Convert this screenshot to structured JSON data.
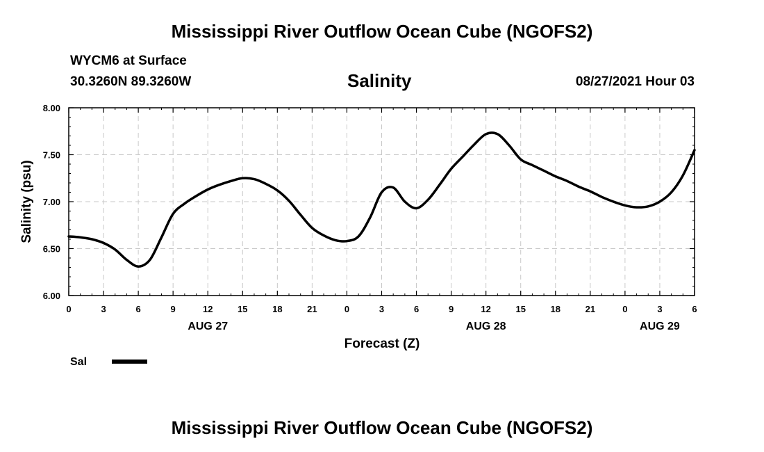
{
  "header": {
    "title": "Mississippi River Outflow Ocean Cube (NGOFS2)",
    "station": "WYCM6 at Surface",
    "coords": "30.3260N  89.3260W",
    "datetime": "08/27/2021 Hour 03"
  },
  "footer": {
    "title": "Mississippi River Outflow Ocean Cube (NGOFS2)"
  },
  "chart_data": {
    "type": "line",
    "title": "Salinity",
    "xlabel": "Forecast (Z)",
    "ylabel": "Salinity (psu)",
    "xlim": [
      0,
      54
    ],
    "ylim": [
      6.0,
      8.0
    ],
    "grid": true,
    "x_ticks": [
      0,
      3,
      6,
      9,
      12,
      15,
      18,
      21,
      24,
      27,
      30,
      33,
      36,
      39,
      42,
      45,
      48,
      51,
      54
    ],
    "x_tick_labels": [
      "0",
      "3",
      "6",
      "9",
      "12",
      "15",
      "18",
      "21",
      "0",
      "3",
      "6",
      "9",
      "12",
      "15",
      "18",
      "21",
      "0",
      "3",
      "6"
    ],
    "y_ticks": [
      6.0,
      6.5,
      7.0,
      7.5,
      8.0
    ],
    "y_tick_labels": [
      "6.00",
      "6.50",
      "7.00",
      "7.50",
      "8.00"
    ],
    "date_labels": [
      {
        "x": 12,
        "label": "AUG 27"
      },
      {
        "x": 36,
        "label": "AUG 28"
      },
      {
        "x": 51,
        "label": "AUG 29"
      }
    ],
    "legend": [
      {
        "name": "Sal",
        "color": "#000000"
      }
    ],
    "legend_position": "bottom-left",
    "series": [
      {
        "name": "Sal",
        "color": "#000000",
        "x": [
          0,
          1,
          2,
          3,
          4,
          5,
          6,
          7,
          8,
          9,
          10,
          11,
          12,
          13,
          14,
          15,
          16,
          17,
          18,
          19,
          20,
          21,
          22,
          23,
          24,
          25,
          26,
          27,
          28,
          29,
          30,
          31,
          32,
          33,
          34,
          35,
          36,
          37,
          38,
          39,
          40,
          41,
          42,
          43,
          44,
          45,
          46,
          47,
          48,
          49,
          50,
          51,
          52,
          53,
          54
        ],
        "values": [
          6.63,
          6.62,
          6.6,
          6.56,
          6.49,
          6.38,
          6.31,
          6.38,
          6.62,
          6.87,
          6.98,
          7.06,
          7.13,
          7.18,
          7.22,
          7.25,
          7.24,
          7.19,
          7.12,
          7.01,
          6.86,
          6.72,
          6.64,
          6.59,
          6.58,
          6.63,
          6.83,
          7.1,
          7.15,
          7.0,
          6.93,
          7.02,
          7.18,
          7.35,
          7.48,
          7.61,
          7.72,
          7.72,
          7.6,
          7.45,
          7.39,
          7.33,
          7.27,
          7.22,
          7.16,
          7.11,
          7.05,
          7.0,
          6.96,
          6.94,
          6.95,
          7.0,
          7.1,
          7.28,
          7.55
        ]
      }
    ]
  }
}
